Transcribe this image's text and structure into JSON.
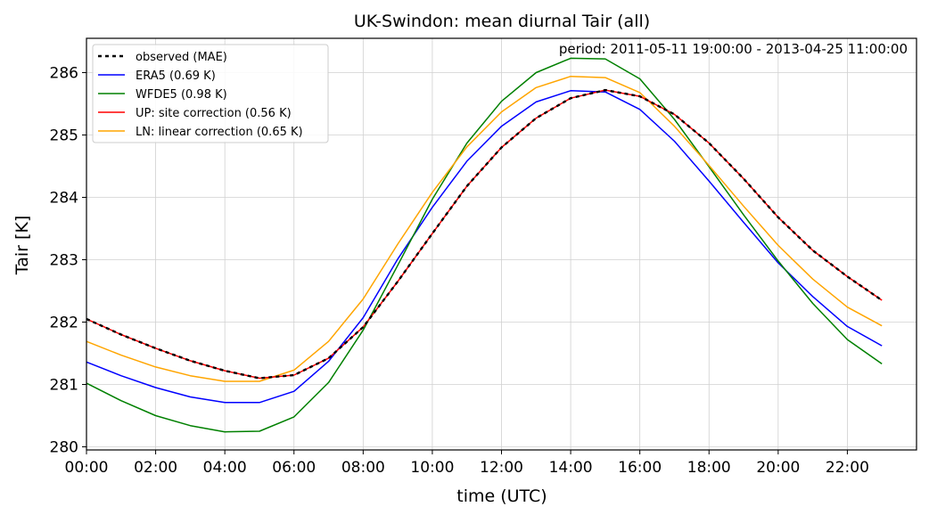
{
  "chart_data": {
    "type": "line",
    "title": "UK-Swindon: mean diurnal Tair (all)",
    "xlabel": "time (UTC)",
    "ylabel": "Tair [K]",
    "annotation": "period: 2011-05-11 19:00:00 - 2013-04-25 11:00:00",
    "xlim": [
      0,
      24
    ],
    "ylim": [
      279.95,
      286.55
    ],
    "grid": true,
    "legend_position": "upper-left",
    "x_tick_labels": [
      "00:00",
      "02:00",
      "04:00",
      "06:00",
      "08:00",
      "10:00",
      "12:00",
      "14:00",
      "16:00",
      "18:00",
      "20:00",
      "22:00"
    ],
    "y_tick_labels": [
      "280",
      "281",
      "282",
      "283",
      "284",
      "285",
      "286"
    ],
    "x": [
      0,
      1,
      2,
      3,
      4,
      5,
      6,
      7,
      8,
      9,
      10,
      11,
      12,
      13,
      14,
      15,
      16,
      17,
      18,
      19,
      20,
      21,
      22,
      23
    ],
    "series": [
      {
        "name": "observed (MAE)",
        "color": "#000000",
        "dashed": true,
        "values": [
          282.05,
          281.8,
          281.58,
          281.38,
          281.22,
          281.1,
          281.15,
          281.42,
          281.92,
          282.65,
          283.42,
          284.18,
          284.8,
          285.27,
          285.59,
          285.72,
          285.62,
          285.33,
          284.87,
          284.3,
          283.68,
          283.15,
          282.73,
          282.35
        ]
      },
      {
        "name": "ERA5 (0.69 K)",
        "color": "#0000ff",
        "dashed": false,
        "values": [
          281.36,
          281.14,
          280.95,
          280.8,
          280.71,
          280.71,
          280.89,
          281.37,
          282.07,
          283.01,
          283.84,
          284.58,
          285.14,
          285.53,
          285.71,
          285.69,
          285.41,
          284.9,
          284.26,
          283.6,
          282.95,
          282.41,
          281.93,
          281.62
        ]
      },
      {
        "name": "WFDE5 (0.98 K)",
        "color": "#008000",
        "dashed": false,
        "values": [
          281.02,
          280.74,
          280.5,
          280.34,
          280.24,
          280.25,
          280.48,
          281.03,
          281.87,
          282.91,
          283.97,
          284.87,
          285.54,
          286.0,
          286.23,
          286.22,
          285.9,
          285.25,
          284.49,
          283.72,
          282.98,
          282.3,
          281.72,
          281.33
        ]
      },
      {
        "name": "UP: site correction (0.56 K)",
        "color": "#ff0000",
        "dashed": false,
        "values": [
          282.05,
          281.8,
          281.58,
          281.38,
          281.22,
          281.1,
          281.15,
          281.42,
          281.92,
          282.65,
          283.42,
          284.18,
          284.8,
          285.27,
          285.59,
          285.72,
          285.62,
          285.33,
          284.87,
          284.3,
          283.68,
          283.15,
          282.73,
          282.35
        ]
      },
      {
        "name": "LN: linear correction (0.65 K)",
        "color": "#ffa500",
        "dashed": false,
        "values": [
          281.69,
          281.47,
          281.28,
          281.14,
          281.05,
          281.05,
          281.23,
          281.69,
          282.37,
          283.25,
          284.08,
          284.81,
          285.37,
          285.76,
          285.94,
          285.92,
          285.68,
          285.14,
          284.51,
          283.86,
          283.23,
          282.69,
          282.24,
          281.94
        ]
      }
    ]
  }
}
